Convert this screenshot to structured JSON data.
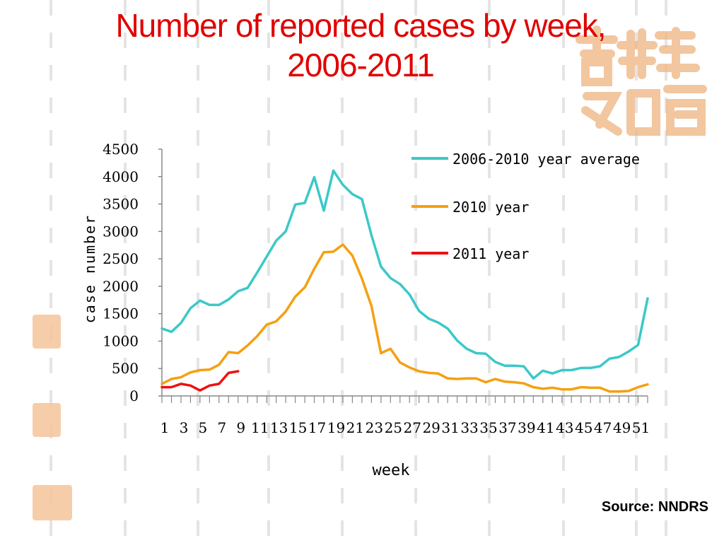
{
  "title_lines": [
    "Number of reported cases by week,",
    "2006-2011"
  ],
  "source": "Source: NNDRS",
  "chart_data": {
    "type": "line",
    "xlabel": "week",
    "ylabel": "case number",
    "ylim": [
      0,
      4500
    ],
    "yticks": [
      0,
      500,
      1000,
      1500,
      2000,
      2500,
      3000,
      3500,
      4000,
      4500
    ],
    "xlim": [
      1,
      52
    ],
    "xtick_labels": [
      "1",
      "3",
      "5",
      "7",
      "9",
      "11",
      "13",
      "15",
      "17",
      "19",
      "21",
      "23",
      "25",
      "27",
      "29",
      "31",
      "33",
      "35",
      "37",
      "39",
      "41",
      "43",
      "45",
      "47",
      "49",
      "51"
    ],
    "grid": false,
    "legend_position": "top-right",
    "series": [
      {
        "name": "2006-2010 year average",
        "color": "#3cc8c8",
        "x": [
          1,
          2,
          3,
          4,
          5,
          6,
          7,
          8,
          9,
          10,
          11,
          12,
          13,
          14,
          15,
          16,
          17,
          18,
          19,
          20,
          21,
          22,
          23,
          24,
          25,
          26,
          27,
          28,
          29,
          30,
          31,
          32,
          33,
          34,
          35,
          36,
          37,
          38,
          39,
          40,
          41,
          42,
          43,
          44,
          45,
          46,
          47,
          48,
          49,
          50,
          51,
          52
        ],
        "values": [
          1230,
          1170,
          1330,
          1600,
          1740,
          1660,
          1660,
          1760,
          1910,
          1970,
          2250,
          2540,
          2830,
          3000,
          3490,
          3520,
          3990,
          3380,
          4110,
          3850,
          3680,
          3590,
          2930,
          2360,
          2150,
          2040,
          1850,
          1550,
          1410,
          1340,
          1230,
          1010,
          860,
          780,
          770,
          620,
          550,
          550,
          540,
          320,
          460,
          410,
          470,
          470,
          510,
          510,
          540,
          680,
          710,
          810,
          930,
          1780
        ]
      },
      {
        "name": "2010 year",
        "color": "#f5a010",
        "x": [
          1,
          2,
          3,
          4,
          5,
          6,
          7,
          8,
          9,
          10,
          11,
          12,
          13,
          14,
          15,
          16,
          17,
          18,
          19,
          20,
          21,
          22,
          23,
          24,
          25,
          26,
          27,
          28,
          29,
          30,
          31,
          32,
          33,
          34,
          35,
          36,
          37,
          38,
          39,
          40,
          41,
          42,
          43,
          44,
          45,
          46,
          47,
          48,
          49,
          50,
          51,
          52
        ],
        "values": [
          220,
          310,
          340,
          430,
          470,
          480,
          570,
          800,
          780,
          920,
          1090,
          1300,
          1360,
          1540,
          1810,
          1980,
          2320,
          2620,
          2630,
          2760,
          2560,
          2140,
          1640,
          780,
          860,
          610,
          520,
          450,
          420,
          410,
          320,
          310,
          320,
          320,
          250,
          310,
          260,
          250,
          230,
          160,
          130,
          150,
          120,
          120,
          160,
          150,
          150,
          80,
          80,
          90,
          160,
          210
        ]
      },
      {
        "name": "2011 year",
        "color": "#ee1111",
        "x": [
          1,
          2,
          3,
          4,
          5,
          6,
          7,
          8,
          9
        ],
        "values": [
          160,
          160,
          220,
          190,
          100,
          190,
          220,
          420,
          450
        ]
      }
    ]
  }
}
